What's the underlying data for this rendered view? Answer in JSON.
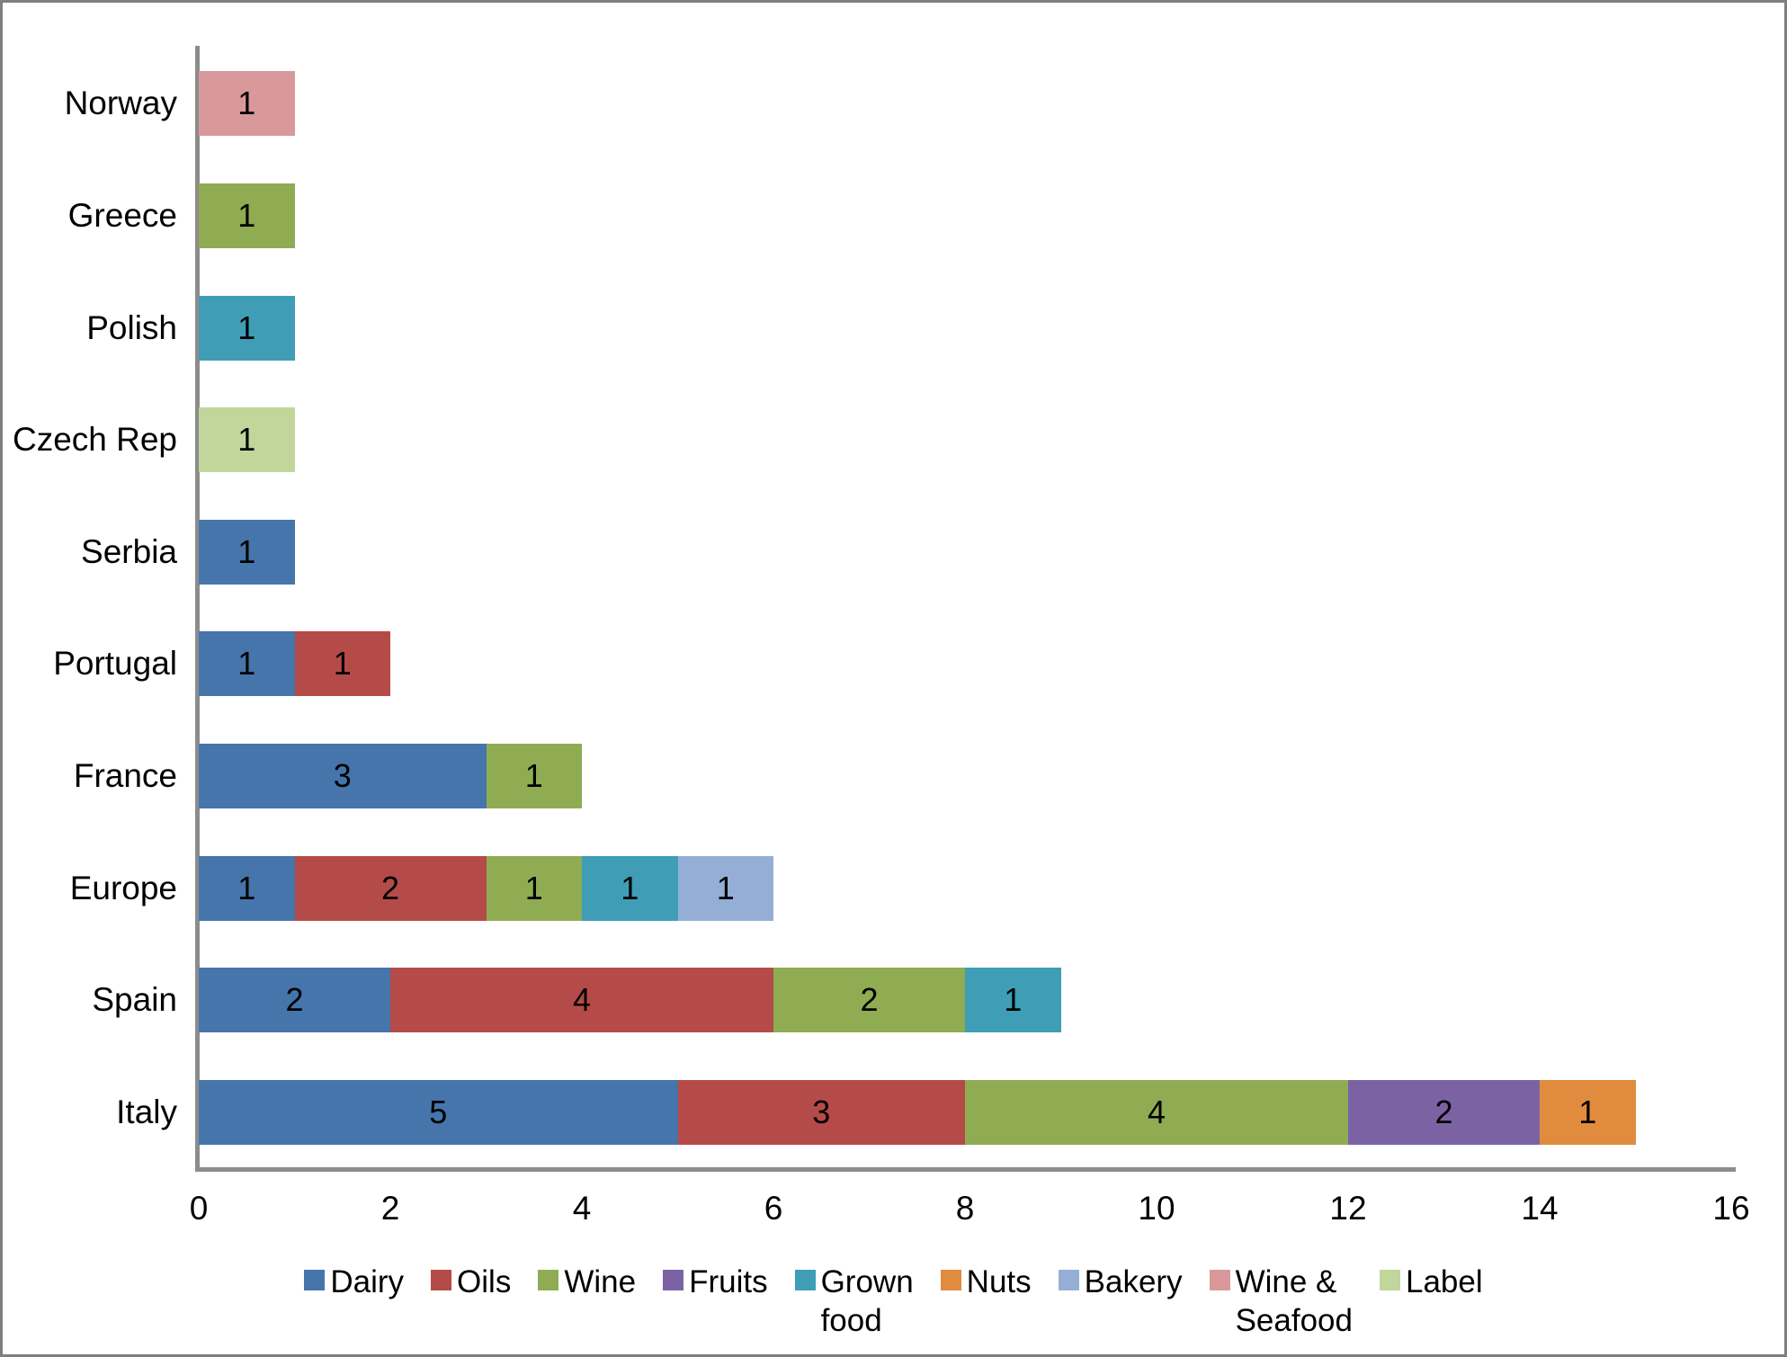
{
  "chart_data": {
    "type": "bar",
    "orientation": "horizontal-stacked",
    "title": "",
    "xlabel": "",
    "ylabel": "",
    "grid": false,
    "x_axis": {
      "min": 0,
      "max": 16,
      "tick_step": 2,
      "tick_labels": [
        "0",
        "2",
        "4",
        "6",
        "8",
        "10",
        "12",
        "14",
        "16"
      ]
    },
    "series_colors": {
      "Dairy": "#4575AB",
      "Oils": "#B54B48",
      "Wine": "#8FAC53",
      "Fruits": "#7B63A3",
      "Grown food": "#3F9DB5",
      "Nuts": "#E08B3D",
      "Bakery": "#95AED6",
      "Wine & Seafood": "#D9989A",
      "Label": "#C2D69B"
    },
    "rows": [
      {
        "category": "Norway",
        "segments": [
          {
            "series": "Wine & Seafood",
            "value": 1
          }
        ]
      },
      {
        "category": "Greece",
        "segments": [
          {
            "series": "Wine",
            "value": 1
          }
        ]
      },
      {
        "category": "Polish",
        "segments": [
          {
            "series": "Grown food",
            "value": 1
          }
        ]
      },
      {
        "category": "Czech Rep",
        "segments": [
          {
            "series": "Label",
            "value": 1
          }
        ]
      },
      {
        "category": "Serbia",
        "segments": [
          {
            "series": "Dairy",
            "value": 1
          }
        ]
      },
      {
        "category": "Portugal",
        "segments": [
          {
            "series": "Dairy",
            "value": 1
          },
          {
            "series": "Oils",
            "value": 1
          }
        ]
      },
      {
        "category": "France",
        "segments": [
          {
            "series": "Dairy",
            "value": 3
          },
          {
            "series": "Wine",
            "value": 1
          }
        ]
      },
      {
        "category": "Europe",
        "segments": [
          {
            "series": "Dairy",
            "value": 1
          },
          {
            "series": "Oils",
            "value": 2
          },
          {
            "series": "Wine",
            "value": 1
          },
          {
            "series": "Grown food",
            "value": 1
          },
          {
            "series": "Bakery",
            "value": 1
          }
        ]
      },
      {
        "category": "Spain",
        "segments": [
          {
            "series": "Dairy",
            "value": 2
          },
          {
            "series": "Oils",
            "value": 4
          },
          {
            "series": "Wine",
            "value": 2
          },
          {
            "series": "Grown food",
            "value": 1
          }
        ]
      },
      {
        "category": "Italy",
        "segments": [
          {
            "series": "Dairy",
            "value": 5
          },
          {
            "series": "Oils",
            "value": 3
          },
          {
            "series": "Wine",
            "value": 4
          },
          {
            "series": "Fruits",
            "value": 2
          },
          {
            "series": "Nuts",
            "value": 1
          }
        ]
      }
    ],
    "legend": {
      "position": "bottom",
      "items": [
        {
          "series": "Dairy",
          "display": "Dairy"
        },
        {
          "series": "Oils",
          "display": "Oils"
        },
        {
          "series": "Wine",
          "display": "Wine"
        },
        {
          "series": "Fruits",
          "display": "Fruits"
        },
        {
          "series": "Grown food",
          "display": "Grown\nfood"
        },
        {
          "series": "Nuts",
          "display": "Nuts"
        },
        {
          "series": "Bakery",
          "display": "Bakery"
        },
        {
          "series": "Wine & Seafood",
          "display": "Wine &\nSeafood"
        },
        {
          "series": "Label",
          "display": "Label"
        }
      ]
    }
  }
}
